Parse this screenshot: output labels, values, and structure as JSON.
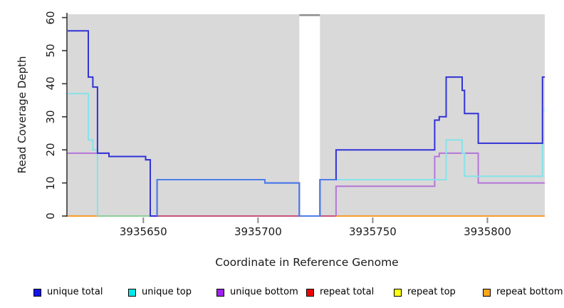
{
  "chart_data": {
    "type": "line",
    "subtype": "step-coverage-plot",
    "xlabel": "Coordinate in Reference Genome",
    "ylabel": "Read Coverage Depth",
    "xlim": [
      3935617,
      3935825
    ],
    "ylim": [
      0,
      61
    ],
    "x_ticks": [
      3935650,
      3935700,
      3935750,
      3935800
    ],
    "y_ticks": [
      0,
      10,
      20,
      30,
      40,
      50,
      60
    ],
    "grid": false,
    "panel_background": "#d9d9d9",
    "masked_region": {
      "start": 3935718,
      "end": 3935727,
      "fill": "#ffffff",
      "cap_color": "#8f8f8f"
    },
    "legend_position": "bottom",
    "series": [
      {
        "name": "unique total",
        "legend_color": "#1414e6",
        "line_color": "#3232d8",
        "overlay_color": "#4f7ce8",
        "paths": [
          [
            [
              3935617,
              56
            ],
            [
              3935626,
              42
            ],
            [
              3935628,
              39
            ],
            [
              3935630,
              19
            ],
            [
              3935635,
              18
            ],
            [
              3935651,
              17
            ],
            [
              3935653,
              0
            ],
            [
              3935656,
              11
            ],
            [
              3935703,
              10
            ],
            [
              3935718,
              0
            ],
            [
              3935727,
              11
            ],
            [
              3935734,
              20
            ],
            [
              3935777,
              29
            ],
            [
              3935779,
              30
            ],
            [
              3935782,
              42
            ],
            [
              3935789,
              38
            ],
            [
              3935790,
              31
            ],
            [
              3935796,
              22
            ],
            [
              3935824,
              42
            ],
            [
              3935825,
              42
            ]
          ]
        ],
        "overlay_paths": [
          [
            [
              3935656,
              0
            ],
            [
              3935656,
              11
            ],
            [
              3935703,
              10
            ],
            [
              3935718,
              0
            ],
            [
              3935727,
              11
            ],
            [
              3935734,
              11
            ]
          ]
        ]
      },
      {
        "name": "unique top",
        "legend_color": "#00e8e8",
        "line_color": "#86e3e8",
        "paths": [
          [
            [
              3935617,
              37
            ],
            [
              3935626,
              23
            ],
            [
              3935628,
              20
            ],
            [
              3935630,
              0
            ]
          ],
          [
            [
              3935656,
              0
            ],
            [
              3935656,
              11
            ],
            [
              3935703,
              10
            ],
            [
              3935718,
              0
            ],
            [
              3935727,
              11
            ],
            [
              3935782,
              23
            ],
            [
              3935789,
              19
            ],
            [
              3935790,
              12
            ],
            [
              3935824,
              32
            ],
            [
              3935825,
              32
            ]
          ]
        ]
      },
      {
        "name": "unique bottom",
        "legend_color": "#a020f0",
        "line_color": "#b476d8",
        "paths": [
          [
            [
              3935617,
              19
            ],
            [
              3935635,
              18
            ],
            [
              3935651,
              17
            ],
            [
              3935653,
              0
            ]
          ],
          [
            [
              3935734,
              0
            ],
            [
              3935734,
              9
            ],
            [
              3935777,
              18
            ],
            [
              3935779,
              19
            ],
            [
              3935796,
              10
            ],
            [
              3935825,
              10
            ]
          ]
        ]
      },
      {
        "name": "repeat total",
        "legend_color": "#ee0000",
        "line_color": "#c9527f",
        "value": 0,
        "paths": []
      },
      {
        "name": "repeat top",
        "legend_color": "#ffff14",
        "line_color": "#8fce9a",
        "value": 0,
        "paths": []
      },
      {
        "name": "repeat bottom",
        "legend_color": "#ffa519",
        "line_color": "#f89b2c",
        "value": 0,
        "paths": []
      }
    ],
    "zero_line_segments": [
      {
        "from": 3935617,
        "to": 3935630,
        "color": "#f89b2c",
        "meaning": "repeat bottom / repeat lines at 0"
      },
      {
        "from": 3935630,
        "to": 3935653,
        "color": "#8fce9a",
        "meaning": "unique top + repeat lines at 0"
      },
      {
        "from": 3935656,
        "to": 3935718,
        "color": "#c9527f",
        "meaning": "unique bottom + repeat total at 0"
      },
      {
        "from": 3935727,
        "to": 3935734,
        "color": "#c9527f",
        "meaning": "unique bottom + repeat total at 0"
      },
      {
        "from": 3935734,
        "to": 3935825,
        "color": "#f89b2c",
        "meaning": "repeat lines at 0"
      }
    ],
    "axis_colors": {
      "y_axis_line": "#333333",
      "y_tick": "#333333",
      "x_tick": "#8c8c8c"
    }
  }
}
